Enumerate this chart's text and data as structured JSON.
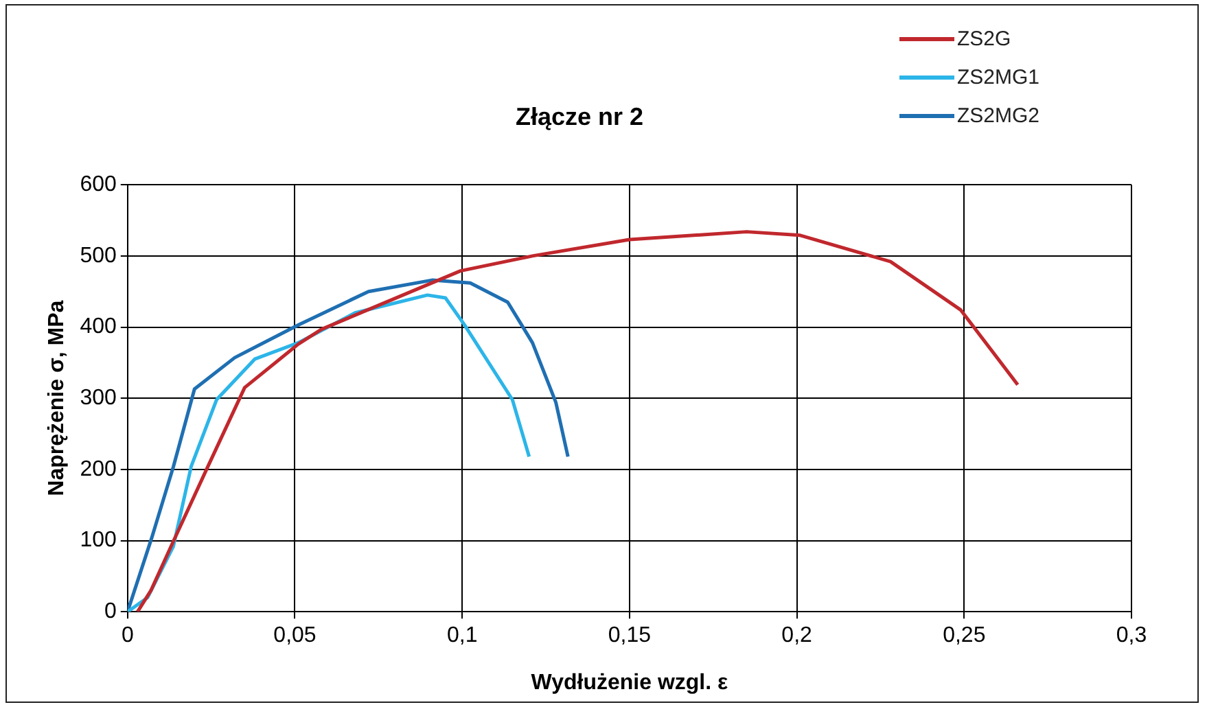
{
  "chart_data": {
    "type": "line",
    "title": "Złącze nr 2",
    "xlabel": "Wydłużenie wzgl. ε",
    "ylabel": "Naprężenie σ, MPa",
    "xlim": [
      0,
      0.3
    ],
    "xticks": [
      0,
      {
        "value": 0.05,
        "label": "0,05"
      },
      {
        "value": 0.1,
        "label": "0,1"
      },
      {
        "value": 0.15,
        "label": "0,15"
      },
      {
        "value": 0.2,
        "label": "0,2"
      },
      {
        "value": 0.25,
        "label": "0,25"
      },
      {
        "value": 0.3,
        "label": "0,3"
      }
    ],
    "ylim": [
      0,
      600
    ],
    "yticks": [
      0,
      100,
      200,
      300,
      400,
      500,
      600
    ],
    "grid": true,
    "legend": "top right",
    "marker": "none",
    "series": [
      {
        "name": "ZS2G",
        "color": "#c0282d",
        "x": [
          0.003,
          0.007,
          0.0137,
          0.0236,
          0.035,
          0.051,
          0.058,
          0.0995,
          0.121,
          0.15,
          0.185,
          0.201,
          0.228,
          0.249,
          0.266
        ],
        "values": [
          0,
          30,
          99,
          200,
          315,
          376,
          397,
          479,
          500,
          523,
          534,
          529,
          492,
          424,
          319
        ]
      },
      {
        "name": "ZS2MG1",
        "color": "#2cb5e8",
        "x": [
          0,
          0.006,
          0.0137,
          0.019,
          0.0266,
          0.038,
          0.051,
          0.068,
          0.0896,
          0.095,
          0.1007,
          0.115,
          0.12
        ],
        "values": [
          0,
          20,
          92,
          204,
          298,
          355,
          378,
          420,
          445,
          441,
          403,
          298,
          218
        ]
      },
      {
        "name": "ZS2MG2",
        "color": "#1f6fb2",
        "x": [
          0,
          0.0073,
          0.0137,
          0.02,
          0.032,
          0.051,
          0.072,
          0.091,
          0.1024,
          0.1136,
          0.121,
          0.128,
          0.1316
        ],
        "values": [
          0,
          105,
          204,
          313,
          357,
          403,
          450,
          466,
          462,
          435,
          378,
          294,
          218
        ]
      }
    ]
  }
}
